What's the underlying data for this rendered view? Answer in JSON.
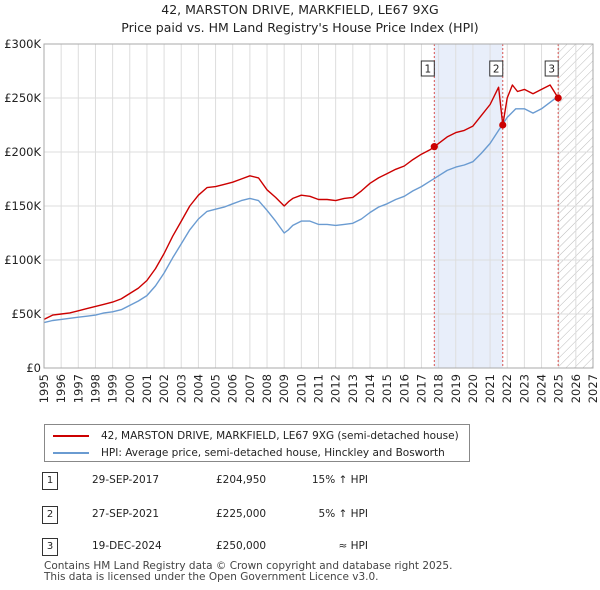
{
  "title_line1": "42, MARSTON DRIVE, MARKFIELD, LE67 9XG",
  "title_line2": "Price paid vs. HM Land Registry's House Price Index (HPI)",
  "colors": {
    "property": "#cc0000",
    "hpi": "#6a9bd1",
    "grid": "#dddddd",
    "shade": "#e8eefa",
    "marker_line": "#d9534f"
  },
  "chart_data": {
    "type": "line",
    "xlim": [
      1995,
      2027
    ],
    "ylim": [
      0,
      300000
    ],
    "x_ticks": [
      "1995",
      "1996",
      "1997",
      "1998",
      "1999",
      "2000",
      "2001",
      "2002",
      "2003",
      "2004",
      "2005",
      "2006",
      "2007",
      "2008",
      "2009",
      "2010",
      "2011",
      "2012",
      "2013",
      "2014",
      "2015",
      "2016",
      "2017",
      "2018",
      "2019",
      "2020",
      "2021",
      "2022",
      "2023",
      "2024",
      "2025",
      "2026",
      "2027"
    ],
    "y_ticks": [
      {
        "value": 0,
        "label": "£0"
      },
      {
        "value": 50000,
        "label": "£50K"
      },
      {
        "value": 100000,
        "label": "£100K"
      },
      {
        "value": 150000,
        "label": "£150K"
      },
      {
        "value": 200000,
        "label": "£200K"
      },
      {
        "value": 250000,
        "label": "£250K"
      },
      {
        "value": 300000,
        "label": "£300K"
      }
    ],
    "shaded_range": [
      2017.75,
      2021.74
    ],
    "future_from": 2025.0,
    "series": [
      {
        "name": "42, MARSTON DRIVE, MARKFIELD, LE67 9XG (semi-detached house)",
        "color": "#cc0000",
        "x": [
          1995.0,
          1995.5,
          1996.0,
          1996.5,
          1997.0,
          1997.5,
          1998.0,
          1998.5,
          1999.0,
          1999.5,
          2000.0,
          2000.5,
          2001.0,
          2001.5,
          2002.0,
          2002.5,
          2003.0,
          2003.5,
          2004.0,
          2004.5,
          2005.0,
          2005.5,
          2006.0,
          2006.5,
          2007.0,
          2007.5,
          2008.0,
          2008.5,
          2009.0,
          2009.25,
          2009.5,
          2010.0,
          2010.5,
          2011.0,
          2011.5,
          2012.0,
          2012.5,
          2013.0,
          2013.5,
          2014.0,
          2014.5,
          2015.0,
          2015.5,
          2016.0,
          2016.5,
          2017.0,
          2017.5,
          2017.75,
          2018.0,
          2018.5,
          2019.0,
          2019.5,
          2020.0,
          2020.5,
          2021.0,
          2021.5,
          2021.74,
          2022.0,
          2022.3,
          2022.6,
          2023.0,
          2023.5,
          2024.0,
          2024.5,
          2024.97,
          2025.0
        ],
        "y": [
          45000,
          49000,
          50000,
          51000,
          53000,
          55000,
          57000,
          59000,
          61000,
          64000,
          69000,
          74000,
          81000,
          92000,
          106000,
          122000,
          136000,
          150000,
          160000,
          167000,
          168000,
          170000,
          172000,
          175000,
          178000,
          176000,
          165000,
          158000,
          150000,
          154000,
          157000,
          160000,
          159000,
          156000,
          156000,
          155000,
          157000,
          158000,
          164000,
          171000,
          176000,
          180000,
          184000,
          187000,
          193000,
          198000,
          202000,
          204950,
          208000,
          214000,
          218000,
          220000,
          224000,
          234000,
          244000,
          260000,
          225000,
          250000,
          262000,
          256000,
          258000,
          254000,
          258000,
          262000,
          250000,
          250000
        ]
      },
      {
        "name": "HPI: Average price, semi-detached house, Hinckley and Bosworth",
        "color": "#6a9bd1",
        "x": [
          1995.0,
          1995.5,
          1996.0,
          1996.5,
          1997.0,
          1997.5,
          1998.0,
          1998.5,
          1999.0,
          1999.5,
          2000.0,
          2000.5,
          2001.0,
          2001.5,
          2002.0,
          2002.5,
          2003.0,
          2003.5,
          2004.0,
          2004.5,
          2005.0,
          2005.5,
          2006.0,
          2006.5,
          2007.0,
          2007.5,
          2008.0,
          2008.5,
          2009.0,
          2009.25,
          2009.5,
          2010.0,
          2010.5,
          2011.0,
          2011.5,
          2012.0,
          2012.5,
          2013.0,
          2013.5,
          2014.0,
          2014.5,
          2015.0,
          2015.5,
          2016.0,
          2016.5,
          2017.0,
          2017.5,
          2018.0,
          2018.5,
          2019.0,
          2019.5,
          2020.0,
          2020.5,
          2021.0,
          2021.5,
          2022.0,
          2022.5,
          2023.0,
          2023.5,
          2024.0,
          2024.5,
          2025.0
        ],
        "y": [
          42000,
          44000,
          45000,
          46000,
          47000,
          48000,
          49000,
          51000,
          52000,
          54000,
          58000,
          62000,
          67000,
          76000,
          88000,
          102000,
          115000,
          128000,
          138000,
          145000,
          147000,
          149000,
          152000,
          155000,
          157000,
          155000,
          146000,
          136000,
          125000,
          128000,
          132000,
          136000,
          136000,
          133000,
          133000,
          132000,
          133000,
          134000,
          138000,
          144000,
          149000,
          152000,
          156000,
          159000,
          164000,
          168000,
          173000,
          178000,
          183000,
          186000,
          188000,
          191000,
          199000,
          208000,
          220000,
          232000,
          240000,
          240000,
          236000,
          240000,
          246000,
          252000
        ]
      }
    ],
    "sales": [
      {
        "label": "1",
        "x": 2017.75,
        "y": 204950
      },
      {
        "label": "2",
        "x": 2021.74,
        "y": 225000
      },
      {
        "label": "3",
        "x": 2024.97,
        "y": 250000
      }
    ]
  },
  "legend": {
    "property": "42, MARSTON DRIVE, MARKFIELD, LE67 9XG (semi-detached house)",
    "hpi": "HPI: Average price, semi-detached house, Hinckley and Bosworth"
  },
  "sales_table": [
    {
      "num": "1",
      "date": "29-SEP-2017",
      "price": "£204,950",
      "hpi": "15% ↑ HPI"
    },
    {
      "num": "2",
      "date": "27-SEP-2021",
      "price": "£225,000",
      "hpi": "5% ↑ HPI"
    },
    {
      "num": "3",
      "date": "19-DEC-2024",
      "price": "£250,000",
      "hpi": "≈ HPI"
    }
  ],
  "footer": {
    "line1": "Contains HM Land Registry data © Crown copyright and database right 2025.",
    "line2": "This data is licensed under the Open Government Licence v3.0."
  }
}
